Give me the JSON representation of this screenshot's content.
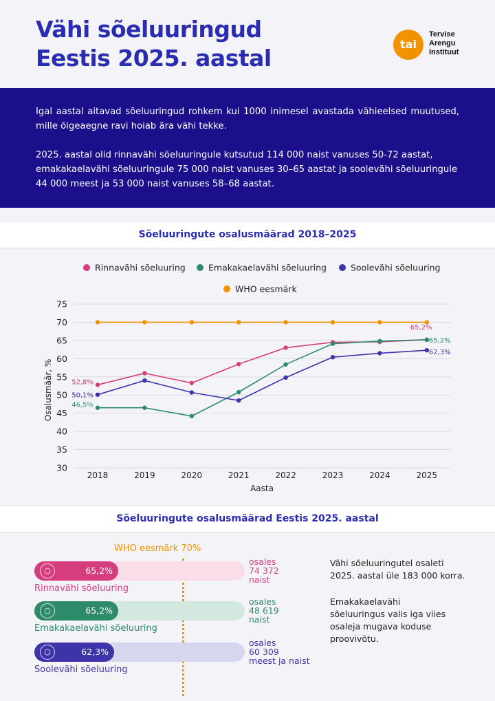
{
  "header": {
    "title_line1": "Vähi sõeluuringud",
    "title_line2": "Eestis 2025. aastal",
    "logo_mark": "tai",
    "logo_line1": "Tervise",
    "logo_line2": "Arengu",
    "logo_line3": "Instituut"
  },
  "intro": {
    "p1": "Igal aastal aitavad sõeluuringud rohkem kui 1000 inimesel avastada vähieelsed muutused, mille õigeaegne ravi hoiab ära vähi tekke.",
    "p2": "2025. aastal olid rinnavähi sõeluuringule kutsutud 114 000 naist vanuses 50-72 aastat, emakakaelavähi sõeluuringule 75 000 naist vanuses 30–65 aastat ja soolevähi sõeluuringule 44 000 meest ja 53 000 naist vanuses 58–68 aastat."
  },
  "section1_title": "Sõeluuringute osalusmäärad 2018–2025",
  "section2_title": "Sõeluuringute osalusmäärad Eestis 2025. aastal",
  "chart_data": {
    "type": "line",
    "title": "Sõeluuringute osalusmäärad 2018–2025",
    "xlabel": "Aasta",
    "ylabel": "Osalusmäär, %",
    "categories": [
      "2018",
      "2019",
      "2020",
      "2021",
      "2022",
      "2023",
      "2024",
      "2025"
    ],
    "ylim": [
      30,
      75
    ],
    "yticks": [
      30,
      35,
      40,
      45,
      50,
      55,
      60,
      65,
      70,
      75
    ],
    "grid": "horizontal",
    "legend": "top",
    "series": [
      {
        "name": "Rinnavähi sõeluuring",
        "color": "#d63d7e",
        "values": [
          52.8,
          56.0,
          53.3,
          58.5,
          63.0,
          64.5,
          64.6,
          65.2
        ],
        "labels": {
          "0": "52,8%",
          "7": "65,2%"
        }
      },
      {
        "name": "Emakakaelavähi sõeluuring",
        "color": "#2e8b6a",
        "values": [
          46.5,
          46.5,
          44.2,
          50.8,
          58.4,
          64.1,
          64.8,
          65.2
        ],
        "labels": {
          "0": "46,5%",
          "7": "65,2%"
        }
      },
      {
        "name": "Soolevähi sõeluuring",
        "color": "#3c34a8",
        "values": [
          50.1,
          54.0,
          50.7,
          48.5,
          54.8,
          60.4,
          61.5,
          62.3
        ],
        "labels": {
          "0": "50,1%",
          "7": "62,3%"
        }
      },
      {
        "name": "WHO eesmärk",
        "color": "#f39200",
        "values": [
          70,
          70,
          70,
          70,
          70,
          70,
          70,
          70
        ]
      }
    ]
  },
  "bars": {
    "who_label": "WHO eesmärk 70%",
    "who_value": 70,
    "items": [
      {
        "name": "Rinnavähi sõeluuring",
        "value": 65.2,
        "pct": "65,2%",
        "part1": "osales",
        "part2": "74 372",
        "part3": "naist",
        "color": "#d63d7e",
        "track": "#fbdde9",
        "icon": "breast-icon"
      },
      {
        "name": "Emakakaelavähi sõeluuring",
        "value": 65.2,
        "pct": "65,2%",
        "part1": "osales",
        "part2": "48 619",
        "part3": "naist",
        "color": "#2e8b6a",
        "track": "#d3e9e0",
        "icon": "uterus-icon"
      },
      {
        "name": "Soolevähi sõeluuring",
        "value": 62.3,
        "pct": "62,3%",
        "part1": "osales",
        "part2": "60 309",
        "part3": "meest ja naist",
        "color": "#3c34a8",
        "track": "#d6d6ec",
        "icon": "colon-icon"
      }
    ],
    "side_p1": "Vähi sõeluuringutel osaleti 2025. aastal üle 183 000 korra.",
    "side_p2": "Emakakaelavähi sõeluuringus valis iga viies osaleja mugava koduse proovivõtu."
  }
}
